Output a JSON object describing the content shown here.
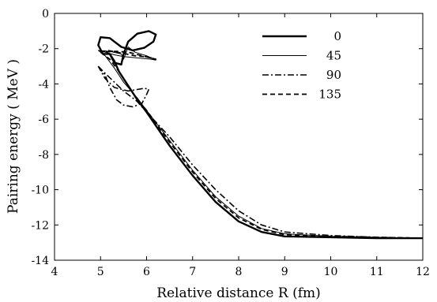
{
  "chart_data": {
    "type": "line",
    "title": "",
    "xlabel": "Relative distance  R  (fm)",
    "ylabel": "Pairing energy    ( MeV )",
    "xlim": [
      4,
      12
    ],
    "ylim": [
      -14,
      0
    ],
    "xticks": [
      4,
      5,
      6,
      7,
      8,
      9,
      10,
      11,
      12
    ],
    "yticks": [
      0,
      -2,
      -4,
      -6,
      -8,
      -10,
      -12,
      -14
    ],
    "grid": false,
    "legend": "top-right",
    "series": [
      {
        "name": "0",
        "style": "solid-thick",
        "points": [
          [
            5.2,
            -2.3
          ],
          [
            5.3,
            -2.7
          ],
          [
            5.4,
            -3.3
          ],
          [
            5.6,
            -4.1
          ],
          [
            5.8,
            -4.9
          ],
          [
            6.0,
            -5.6
          ],
          [
            6.5,
            -7.5
          ],
          [
            7.0,
            -9.2
          ],
          [
            7.5,
            -10.7
          ],
          [
            8.0,
            -11.8
          ],
          [
            8.5,
            -12.4
          ],
          [
            9.0,
            -12.65
          ],
          [
            10.0,
            -12.7
          ],
          [
            11.0,
            -12.75
          ],
          [
            12.0,
            -12.75
          ]
        ],
        "loop": [
          [
            5.2,
            -2.3
          ],
          [
            5.3,
            -2.8
          ],
          [
            5.45,
            -2.9
          ],
          [
            5.5,
            -2.3
          ],
          [
            5.6,
            -1.6
          ],
          [
            5.8,
            -1.15
          ],
          [
            6.05,
            -1.0
          ],
          [
            6.2,
            -1.2
          ],
          [
            6.15,
            -1.6
          ],
          [
            5.95,
            -1.95
          ],
          [
            5.7,
            -2.1
          ],
          [
            5.45,
            -1.9
          ],
          [
            5.2,
            -1.4
          ],
          [
            5.0,
            -1.35
          ],
          [
            4.95,
            -1.8
          ],
          [
            5.05,
            -2.3
          ],
          [
            5.2,
            -2.3
          ]
        ]
      },
      {
        "name": "45",
        "style": "solid-thin",
        "points": [
          [
            4.95,
            -2.1
          ],
          [
            5.1,
            -2.4
          ],
          [
            5.3,
            -3.1
          ],
          [
            5.5,
            -3.9
          ],
          [
            5.8,
            -4.8
          ],
          [
            6.0,
            -5.5
          ],
          [
            6.5,
            -7.2
          ],
          [
            7.0,
            -8.9
          ],
          [
            7.5,
            -10.4
          ],
          [
            8.0,
            -11.5
          ],
          [
            8.5,
            -12.2
          ],
          [
            9.0,
            -12.5
          ],
          [
            10.0,
            -12.65
          ],
          [
            11.0,
            -12.7
          ],
          [
            12.0,
            -12.75
          ]
        ],
        "loop": [
          [
            4.95,
            -2.1
          ],
          [
            5.1,
            -2.2
          ],
          [
            5.3,
            -2.35
          ],
          [
            5.5,
            -2.45
          ],
          [
            5.7,
            -2.5
          ],
          [
            5.9,
            -2.55
          ],
          [
            6.1,
            -2.6
          ],
          [
            6.2,
            -2.65
          ],
          [
            6.0,
            -2.4
          ],
          [
            5.75,
            -2.2
          ],
          [
            5.6,
            -1.9
          ],
          [
            5.5,
            -2.6
          ],
          [
            5.45,
            -2.3
          ],
          [
            5.2,
            -2.15
          ],
          [
            4.95,
            -2.1
          ]
        ]
      },
      {
        "name": "90",
        "style": "dash-dot",
        "points": [
          [
            4.95,
            -3.0
          ],
          [
            5.1,
            -3.4
          ],
          [
            5.3,
            -3.9
          ],
          [
            5.5,
            -4.4
          ],
          [
            5.8,
            -5.0
          ],
          [
            6.0,
            -5.6
          ],
          [
            6.5,
            -7.0
          ],
          [
            7.0,
            -8.6
          ],
          [
            7.5,
            -10.0
          ],
          [
            8.0,
            -11.2
          ],
          [
            8.5,
            -12.0
          ],
          [
            9.0,
            -12.4
          ],
          [
            10.0,
            -12.6
          ],
          [
            11.0,
            -12.7
          ],
          [
            12.0,
            -12.75
          ]
        ],
        "loop": [
          [
            4.95,
            -3.0
          ],
          [
            5.1,
            -3.5
          ],
          [
            5.2,
            -4.2
          ],
          [
            5.35,
            -4.9
          ],
          [
            5.5,
            -5.2
          ],
          [
            5.7,
            -5.3
          ],
          [
            5.9,
            -5.1
          ],
          [
            6.0,
            -4.6
          ],
          [
            6.05,
            -4.3
          ],
          [
            5.95,
            -4.25
          ],
          [
            5.6,
            -4.4
          ],
          [
            5.3,
            -4.2
          ],
          [
            5.1,
            -3.7
          ],
          [
            4.95,
            -3.0
          ]
        ]
      },
      {
        "name": "135",
        "style": "dashed",
        "points": [
          [
            5.0,
            -2.2
          ],
          [
            5.2,
            -2.6
          ],
          [
            5.4,
            -3.3
          ],
          [
            5.6,
            -4.1
          ],
          [
            5.8,
            -4.9
          ],
          [
            6.0,
            -5.5
          ],
          [
            6.5,
            -7.3
          ],
          [
            7.0,
            -9.0
          ],
          [
            7.5,
            -10.5
          ],
          [
            8.0,
            -11.6
          ],
          [
            8.5,
            -12.25
          ],
          [
            9.0,
            -12.55
          ],
          [
            10.0,
            -12.65
          ],
          [
            11.0,
            -12.7
          ],
          [
            12.0,
            -12.75
          ]
        ],
        "loop": [
          [
            5.0,
            -2.2
          ],
          [
            5.15,
            -2.1
          ],
          [
            5.35,
            -2.2
          ],
          [
            5.55,
            -2.3
          ],
          [
            5.75,
            -2.4
          ],
          [
            5.95,
            -2.45
          ],
          [
            6.15,
            -2.55
          ],
          [
            6.2,
            -2.6
          ],
          [
            5.9,
            -2.4
          ],
          [
            5.6,
            -2.2
          ],
          [
            5.35,
            -2.15
          ],
          [
            5.0,
            -2.2
          ]
        ]
      }
    ]
  }
}
